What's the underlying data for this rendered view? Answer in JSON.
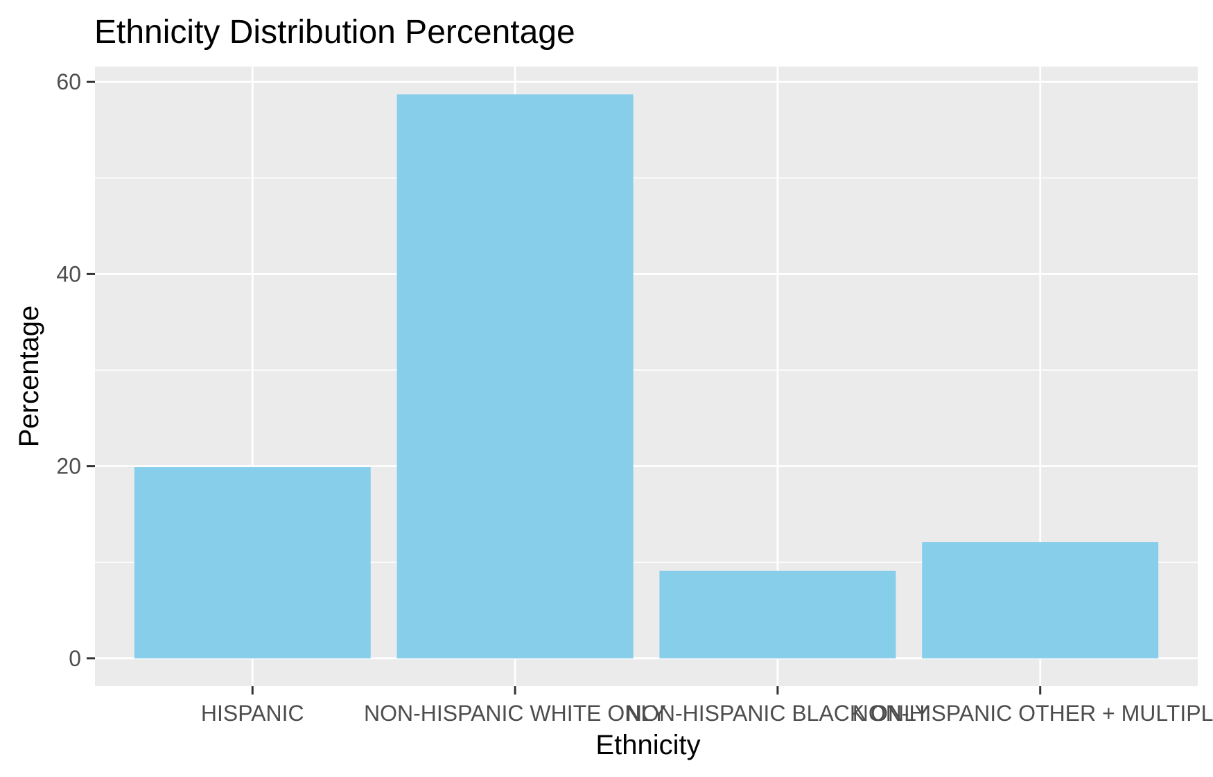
{
  "chart_data": {
    "type": "bar",
    "title": "Ethnicity Distribution Percentage",
    "xlabel": "Ethnicity",
    "ylabel": "Percentage",
    "categories": [
      "HISPANIC",
      "NON-HISPANIC WHITE ONLY",
      "NON-HISPANIC BLACK ONLY",
      "NON-HISPANIC OTHER + MULTIPLE"
    ],
    "values": [
      19.9,
      58.7,
      9.1,
      12.1
    ],
    "ylim": [
      -2.9,
      61.6
    ],
    "y_ticks": [
      0,
      20,
      40,
      60
    ],
    "y_minor_ticks": [
      10,
      30,
      50
    ],
    "grid": true,
    "colors": {
      "bar": "#87CEEB",
      "panel": "#EBEBEB",
      "grid": "#FFFFFF",
      "tick_text": "#4D4D4D",
      "tick_mark": "#333333"
    }
  }
}
